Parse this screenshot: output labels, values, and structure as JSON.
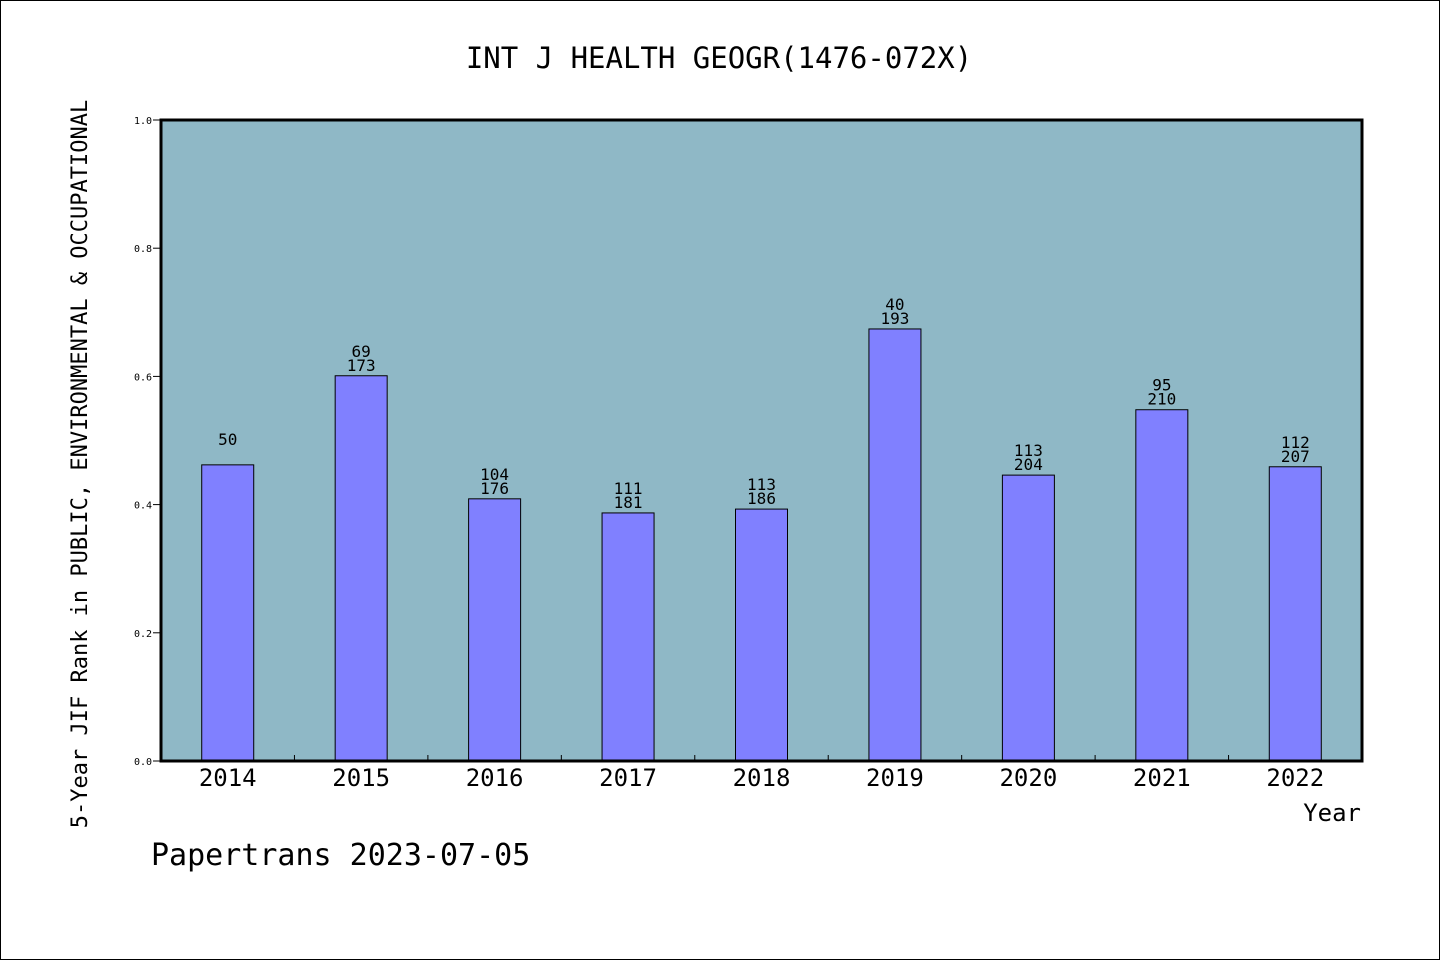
{
  "chart_data": {
    "type": "bar",
    "title": "INT J HEALTH GEOGR(1476-072X)",
    "ylabel": "5-Year JIF Rank in PUBLIC, ENVIRONMENTAL & OCCUPATIONAL",
    "xlabel": "Year",
    "ylim": [
      0,
      1.0
    ],
    "yticks": [
      "0.0",
      "0.2",
      "0.4",
      "0.6",
      "0.8",
      "1.0"
    ],
    "ytick_values": [
      0,
      0.2,
      0.4,
      0.6,
      0.8,
      1.0
    ],
    "categories": [
      "2014",
      "2015",
      "2016",
      "2017",
      "2018",
      "2019",
      "2020",
      "2021",
      "2022"
    ],
    "values": [
      0.462,
      0.601,
      0.409,
      0.387,
      0.393,
      0.674,
      0.446,
      0.548,
      0.459
    ],
    "label_top": [
      "50",
      "69",
      "104",
      "111",
      "113",
      "40",
      "113",
      "95",
      "112"
    ],
    "label_bottom": [
      "",
      "173",
      "176",
      "181",
      "186",
      "193",
      "204",
      "210",
      "207"
    ],
    "colors": {
      "plot_background": "#8fb8c6",
      "bar_fill": "#8080ff",
      "bar_stroke": "#000000"
    },
    "grid": false
  },
  "footer": {
    "source": "Papertrans 2023-07-05"
  }
}
